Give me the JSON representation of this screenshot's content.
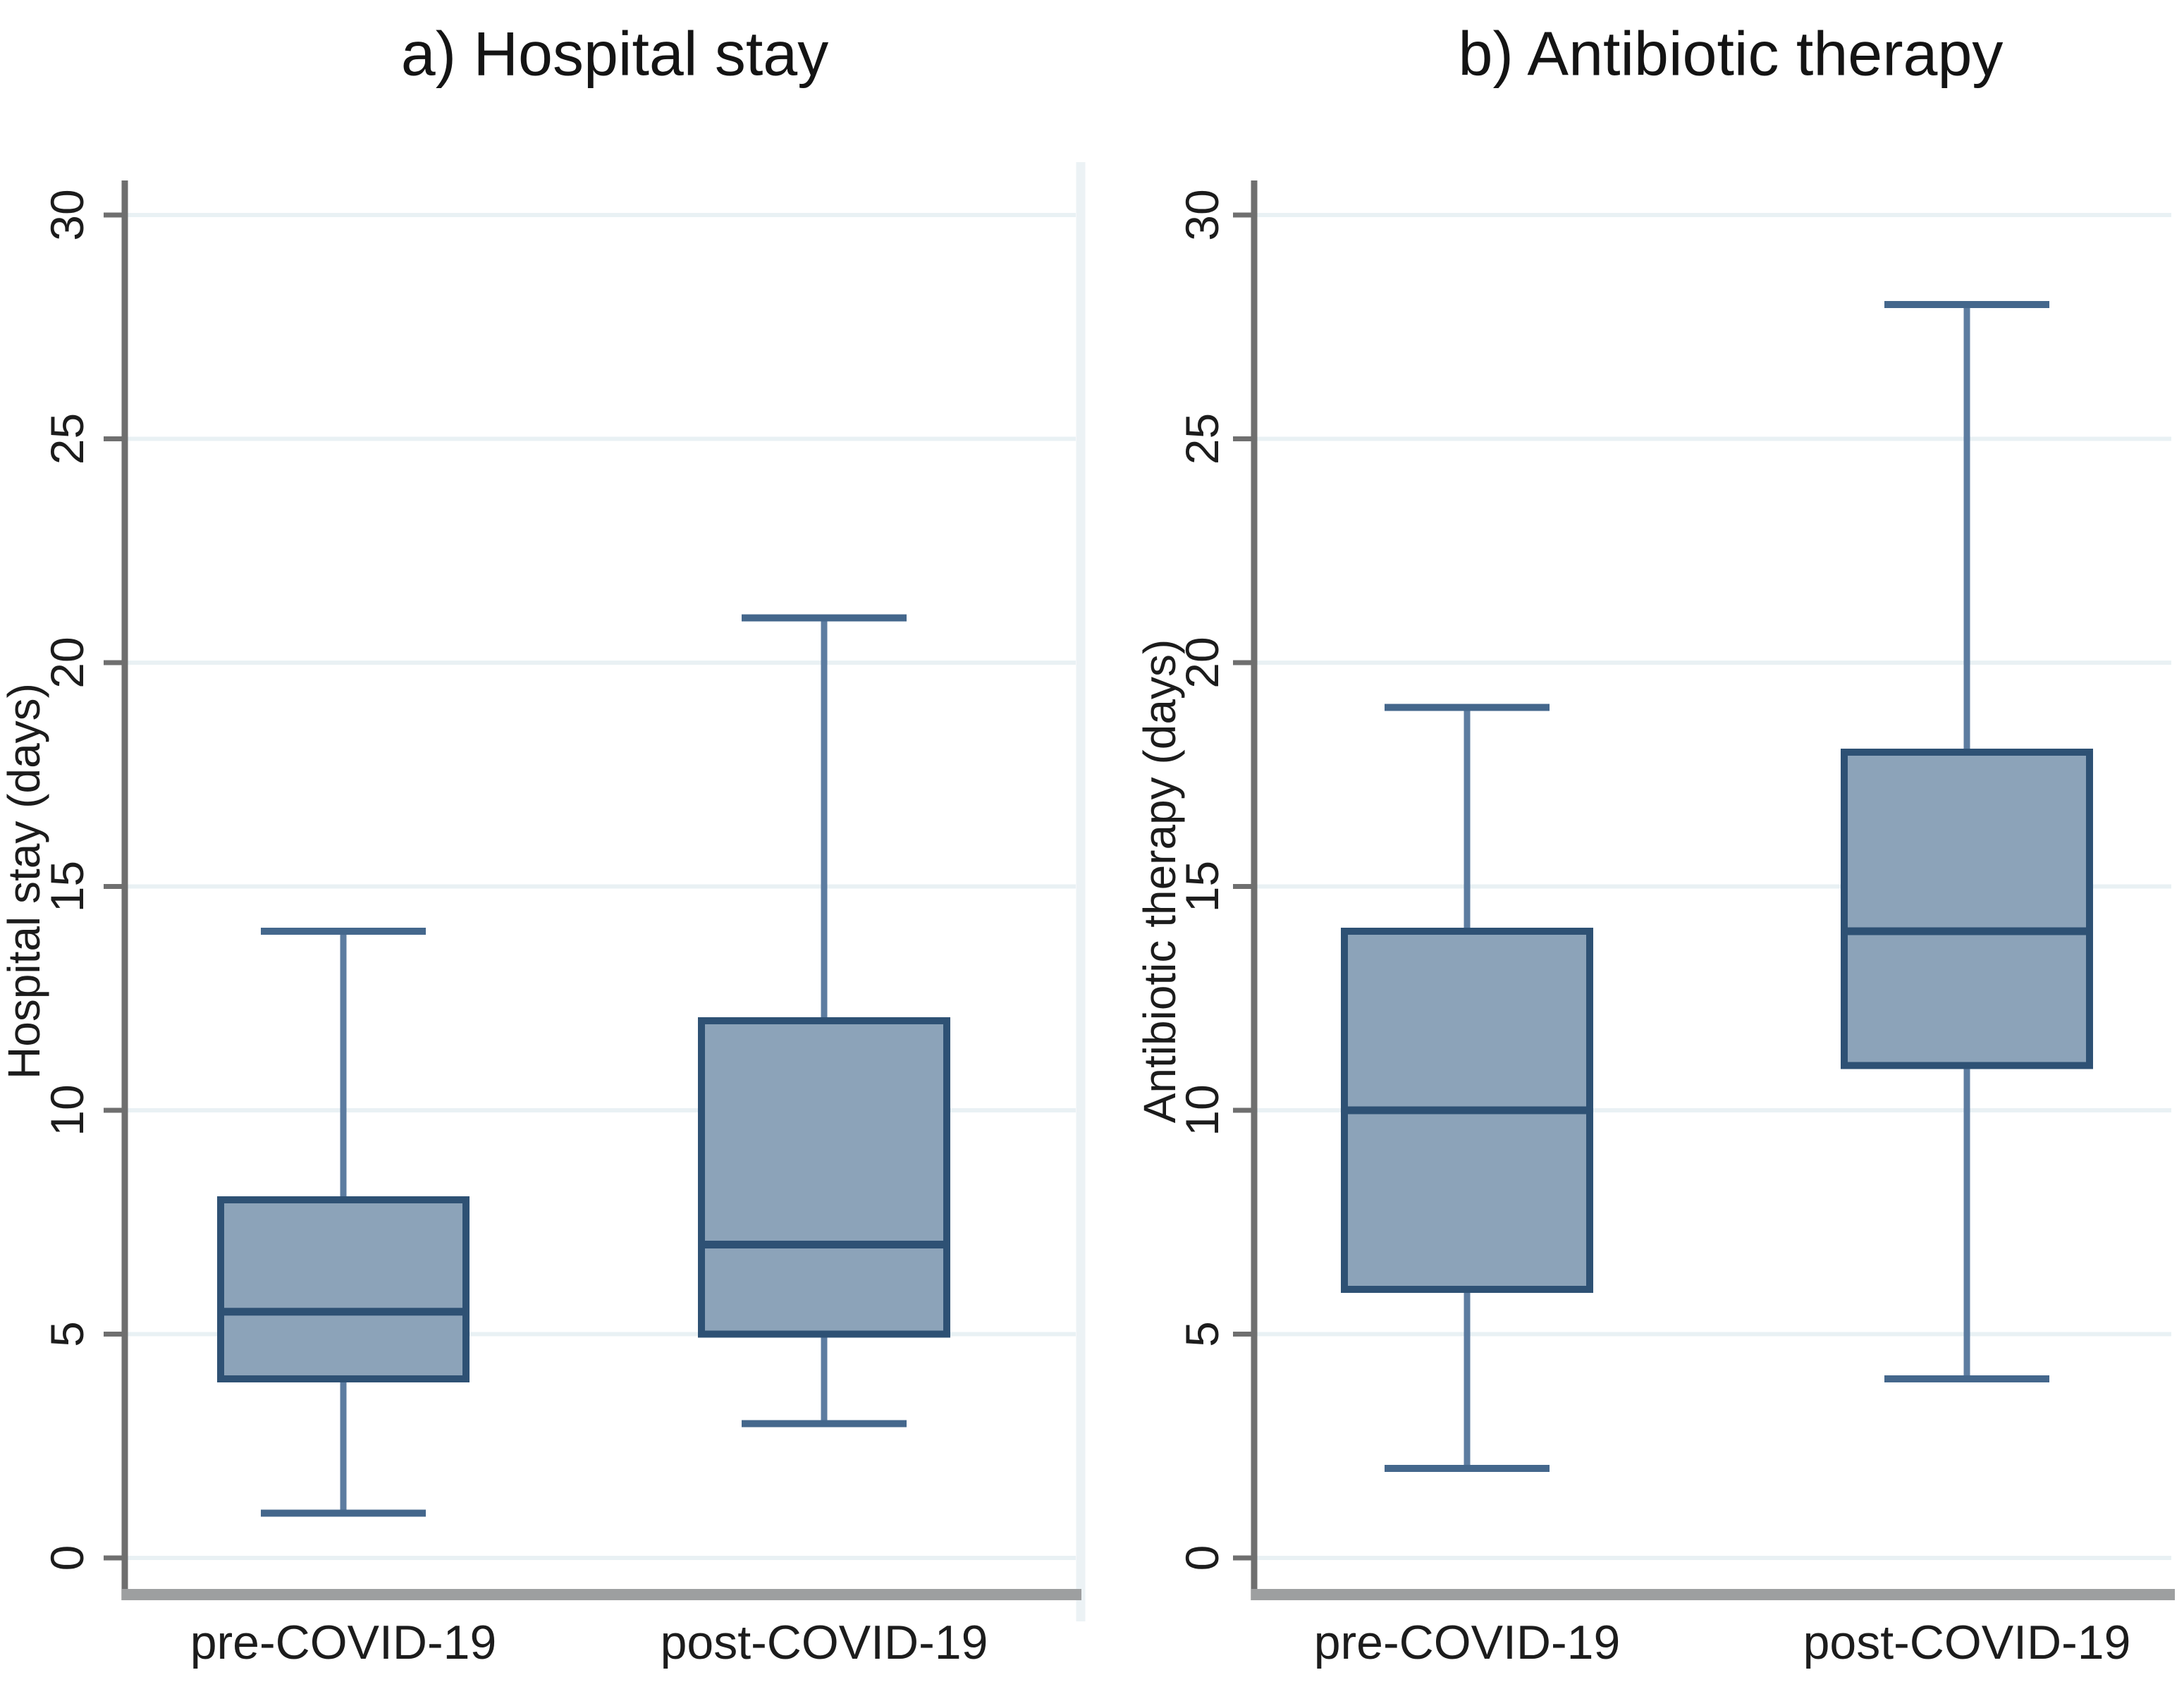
{
  "figure": {
    "background": "#FFFFFF",
    "panel_count": 2
  },
  "chart_data": [
    {
      "type": "boxplot",
      "title": "a) Hospital stay",
      "ylabel": "Hospital stay (days)",
      "xlabel": "",
      "ylim": [
        0,
        30
      ],
      "yticks": [
        0,
        5,
        10,
        15,
        20,
        25,
        30
      ],
      "grid": true,
      "categories": [
        "pre-COVID-19",
        "post-COVID-19"
      ],
      "series": [
        {
          "category": "pre-COVID-19",
          "min": 1,
          "q1": 4,
          "median": 5.5,
          "q3": 8,
          "max": 14
        },
        {
          "category": "post-COVID-19",
          "min": 3,
          "q1": 5,
          "median": 7,
          "q3": 12,
          "max": 21
        }
      ]
    },
    {
      "type": "boxplot",
      "title": "b) Antibiotic therapy",
      "ylabel": "Antibiotic therapy (days)",
      "xlabel": "",
      "ylim": [
        0,
        30
      ],
      "yticks": [
        0,
        5,
        10,
        15,
        20,
        25,
        30
      ],
      "grid": true,
      "categories": [
        "pre-COVID-19",
        "post-COVID-19"
      ],
      "series": [
        {
          "category": "pre-COVID-19",
          "min": 2,
          "q1": 6,
          "median": 10,
          "q3": 14,
          "max": 19
        },
        {
          "category": "post-COVID-19",
          "min": 4,
          "q1": 11,
          "median": 14,
          "q3": 18,
          "max": 28
        }
      ]
    }
  ],
  "colors": {
    "box_fill": "#8CA3B9",
    "box_border": "#2E5174",
    "median": "#2E5174",
    "whisker": "#5C7CA0",
    "whisker_cap": "#44678C",
    "gridline": "#E9F1F4",
    "axis": "#6F6F6F",
    "x_axis": "#9D9FA0",
    "divider": "#ECF2F5",
    "text": "#1C1C1C",
    "title_text": "#141414"
  }
}
